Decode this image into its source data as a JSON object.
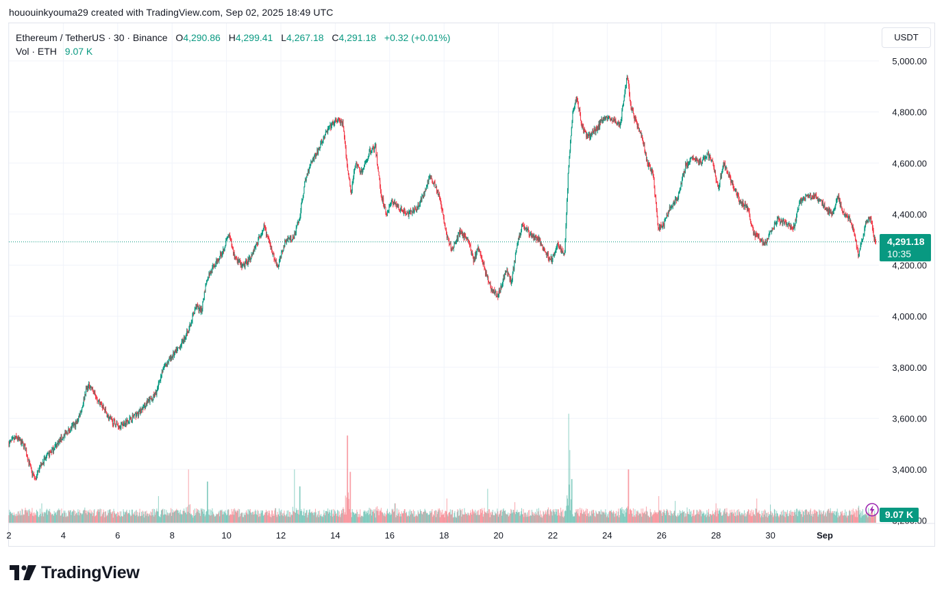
{
  "caption": "hououinkyouma29 created with TradingView.com, Sep 02, 2025 18:49 UTC",
  "legend": {
    "symbol": "Ethereum / TetherUS · 30 · Binance",
    "o_label": "O",
    "o_value": "4,290.86",
    "h_label": "H",
    "h_value": "4,299.41",
    "l_label": "L",
    "l_value": "4,267.18",
    "c_label": "C",
    "c_value": "4,291.18",
    "change": "+0.32 (+0.01%)",
    "vol_label": "Vol · ETH",
    "vol_value": "9.07 K"
  },
  "currency_button": "USDT",
  "last_price_tag": {
    "price": "4,291.18",
    "countdown": "10:35"
  },
  "volume_tag": "9.07 K",
  "footer_brand": "TradingView",
  "colors": {
    "up": "#089981",
    "down": "#f23645",
    "grid": "#f0f3fa",
    "text": "#131722"
  },
  "chart_data": {
    "type": "candlestick",
    "title": "Ethereum / TetherUS · 30 · Binance",
    "y_ticks": [
      "5,000.00",
      "4,800.00",
      "4,600.00",
      "4,400.00",
      "4,200.00",
      "4,000.00",
      "3,800.00",
      "3,600.00",
      "3,400.00"
    ],
    "y_tick_values": [
      5000,
      4800,
      4600,
      4400,
      4200,
      4000,
      3800,
      3600,
      3400
    ],
    "x_ticks": [
      "2",
      "4",
      "6",
      "8",
      "10",
      "12",
      "14",
      "16",
      "18",
      "20",
      "22",
      "24",
      "26",
      "28",
      "30",
      "Sep"
    ],
    "x_tick_days": [
      2,
      4,
      6,
      8,
      10,
      12,
      14,
      16,
      18,
      20,
      22,
      24,
      26,
      28,
      30,
      32
    ],
    "x_range_days": [
      2,
      33.9
    ],
    "y_range": [
      3250,
      5090
    ],
    "last_price": 4291.18,
    "price_path": [
      [
        2.0,
        3500
      ],
      [
        2.3,
        3525
      ],
      [
        2.6,
        3490
      ],
      [
        2.85,
        3390
      ],
      [
        3.0,
        3360
      ],
      [
        3.2,
        3420
      ],
      [
        3.5,
        3460
      ],
      [
        3.8,
        3500
      ],
      [
        4.2,
        3550
      ],
      [
        4.5,
        3580
      ],
      [
        4.7,
        3640
      ],
      [
        4.85,
        3710
      ],
      [
        5.0,
        3730
      ],
      [
        5.2,
        3690
      ],
      [
        5.5,
        3640
      ],
      [
        5.7,
        3600
      ],
      [
        5.9,
        3580
      ],
      [
        6.1,
        3570
      ],
      [
        6.5,
        3600
      ],
      [
        6.8,
        3620
      ],
      [
        7.1,
        3660
      ],
      [
        7.4,
        3690
      ],
      [
        7.7,
        3800
      ],
      [
        8.0,
        3840
      ],
      [
        8.3,
        3880
      ],
      [
        8.6,
        3940
      ],
      [
        8.9,
        4040
      ],
      [
        9.1,
        4020
      ],
      [
        9.3,
        4150
      ],
      [
        9.6,
        4200
      ],
      [
        9.9,
        4260
      ],
      [
        10.1,
        4320
      ],
      [
        10.3,
        4240
      ],
      [
        10.6,
        4190
      ],
      [
        10.9,
        4230
      ],
      [
        11.2,
        4300
      ],
      [
        11.4,
        4350
      ],
      [
        11.7,
        4250
      ],
      [
        11.9,
        4190
      ],
      [
        12.2,
        4300
      ],
      [
        12.5,
        4310
      ],
      [
        12.7,
        4380
      ],
      [
        12.9,
        4520
      ],
      [
        13.1,
        4600
      ],
      [
        13.4,
        4650
      ],
      [
        13.6,
        4700
      ],
      [
        13.8,
        4740
      ],
      [
        14.1,
        4770
      ],
      [
        14.3,
        4750
      ],
      [
        14.45,
        4600
      ],
      [
        14.6,
        4480
      ],
      [
        14.75,
        4600
      ],
      [
        15.0,
        4560
      ],
      [
        15.3,
        4650
      ],
      [
        15.5,
        4660
      ],
      [
        15.7,
        4480
      ],
      [
        15.9,
        4400
      ],
      [
        16.1,
        4450
      ],
      [
        16.4,
        4420
      ],
      [
        16.7,
        4400
      ],
      [
        17.0,
        4420
      ],
      [
        17.3,
        4480
      ],
      [
        17.5,
        4550
      ],
      [
        17.7,
        4510
      ],
      [
        17.9,
        4450
      ],
      [
        18.1,
        4320
      ],
      [
        18.3,
        4260
      ],
      [
        18.6,
        4330
      ],
      [
        18.9,
        4300
      ],
      [
        19.1,
        4220
      ],
      [
        19.3,
        4270
      ],
      [
        19.6,
        4150
      ],
      [
        19.8,
        4100
      ],
      [
        20.0,
        4080
      ],
      [
        20.3,
        4180
      ],
      [
        20.5,
        4130
      ],
      [
        20.7,
        4280
      ],
      [
        20.9,
        4360
      ],
      [
        21.2,
        4320
      ],
      [
        21.5,
        4300
      ],
      [
        21.8,
        4240
      ],
      [
        22.0,
        4220
      ],
      [
        22.2,
        4280
      ],
      [
        22.45,
        4240
      ],
      [
        22.6,
        4590
      ],
      [
        22.75,
        4800
      ],
      [
        22.9,
        4860
      ],
      [
        23.1,
        4740
      ],
      [
        23.3,
        4700
      ],
      [
        23.6,
        4730
      ],
      [
        23.9,
        4780
      ],
      [
        24.2,
        4770
      ],
      [
        24.5,
        4750
      ],
      [
        24.75,
        4940
      ],
      [
        24.9,
        4820
      ],
      [
        25.1,
        4750
      ],
      [
        25.3,
        4700
      ],
      [
        25.5,
        4600
      ],
      [
        25.7,
        4560
      ],
      [
        25.9,
        4340
      ],
      [
        26.1,
        4360
      ],
      [
        26.3,
        4420
      ],
      [
        26.6,
        4460
      ],
      [
        26.9,
        4590
      ],
      [
        27.2,
        4620
      ],
      [
        27.5,
        4600
      ],
      [
        27.7,
        4640
      ],
      [
        27.9,
        4600
      ],
      [
        28.1,
        4500
      ],
      [
        28.3,
        4600
      ],
      [
        28.6,
        4520
      ],
      [
        28.9,
        4450
      ],
      [
        29.2,
        4420
      ],
      [
        29.4,
        4320
      ],
      [
        29.6,
        4310
      ],
      [
        29.8,
        4280
      ],
      [
        30.0,
        4320
      ],
      [
        30.3,
        4380
      ],
      [
        30.6,
        4360
      ],
      [
        30.9,
        4350
      ],
      [
        31.1,
        4450
      ],
      [
        31.4,
        4470
      ],
      [
        31.7,
        4470
      ],
      [
        32.0,
        4430
      ],
      [
        32.3,
        4400
      ],
      [
        32.5,
        4470
      ],
      [
        32.7,
        4400
      ],
      [
        32.9,
        4390
      ],
      [
        33.1,
        4330
      ],
      [
        33.25,
        4240
      ],
      [
        33.4,
        4300
      ],
      [
        33.55,
        4370
      ],
      [
        33.7,
        4390
      ],
      [
        33.85,
        4300
      ],
      [
        33.9,
        4291
      ]
    ],
    "volume_scale_max": 48000,
    "volume_spikes": [
      [
        3.2,
        8000
      ],
      [
        5.3,
        5500
      ],
      [
        7.5,
        11000
      ],
      [
        8.6,
        22000
      ],
      [
        9.3,
        17000
      ],
      [
        11.8,
        6000
      ],
      [
        12.5,
        22000
      ],
      [
        12.7,
        15000
      ],
      [
        14.45,
        36000
      ],
      [
        14.55,
        21000
      ],
      [
        16.2,
        8000
      ],
      [
        18.1,
        10000
      ],
      [
        19.6,
        14000
      ],
      [
        20.6,
        8500
      ],
      [
        22.58,
        45000
      ],
      [
        22.62,
        30000
      ],
      [
        22.7,
        18000
      ],
      [
        24.78,
        22000
      ],
      [
        25.9,
        11000
      ],
      [
        26.5,
        9000
      ],
      [
        28.0,
        8000
      ],
      [
        29.5,
        10000
      ],
      [
        30.0,
        7500
      ],
      [
        32.2,
        6000
      ],
      [
        33.25,
        7000
      ]
    ]
  }
}
